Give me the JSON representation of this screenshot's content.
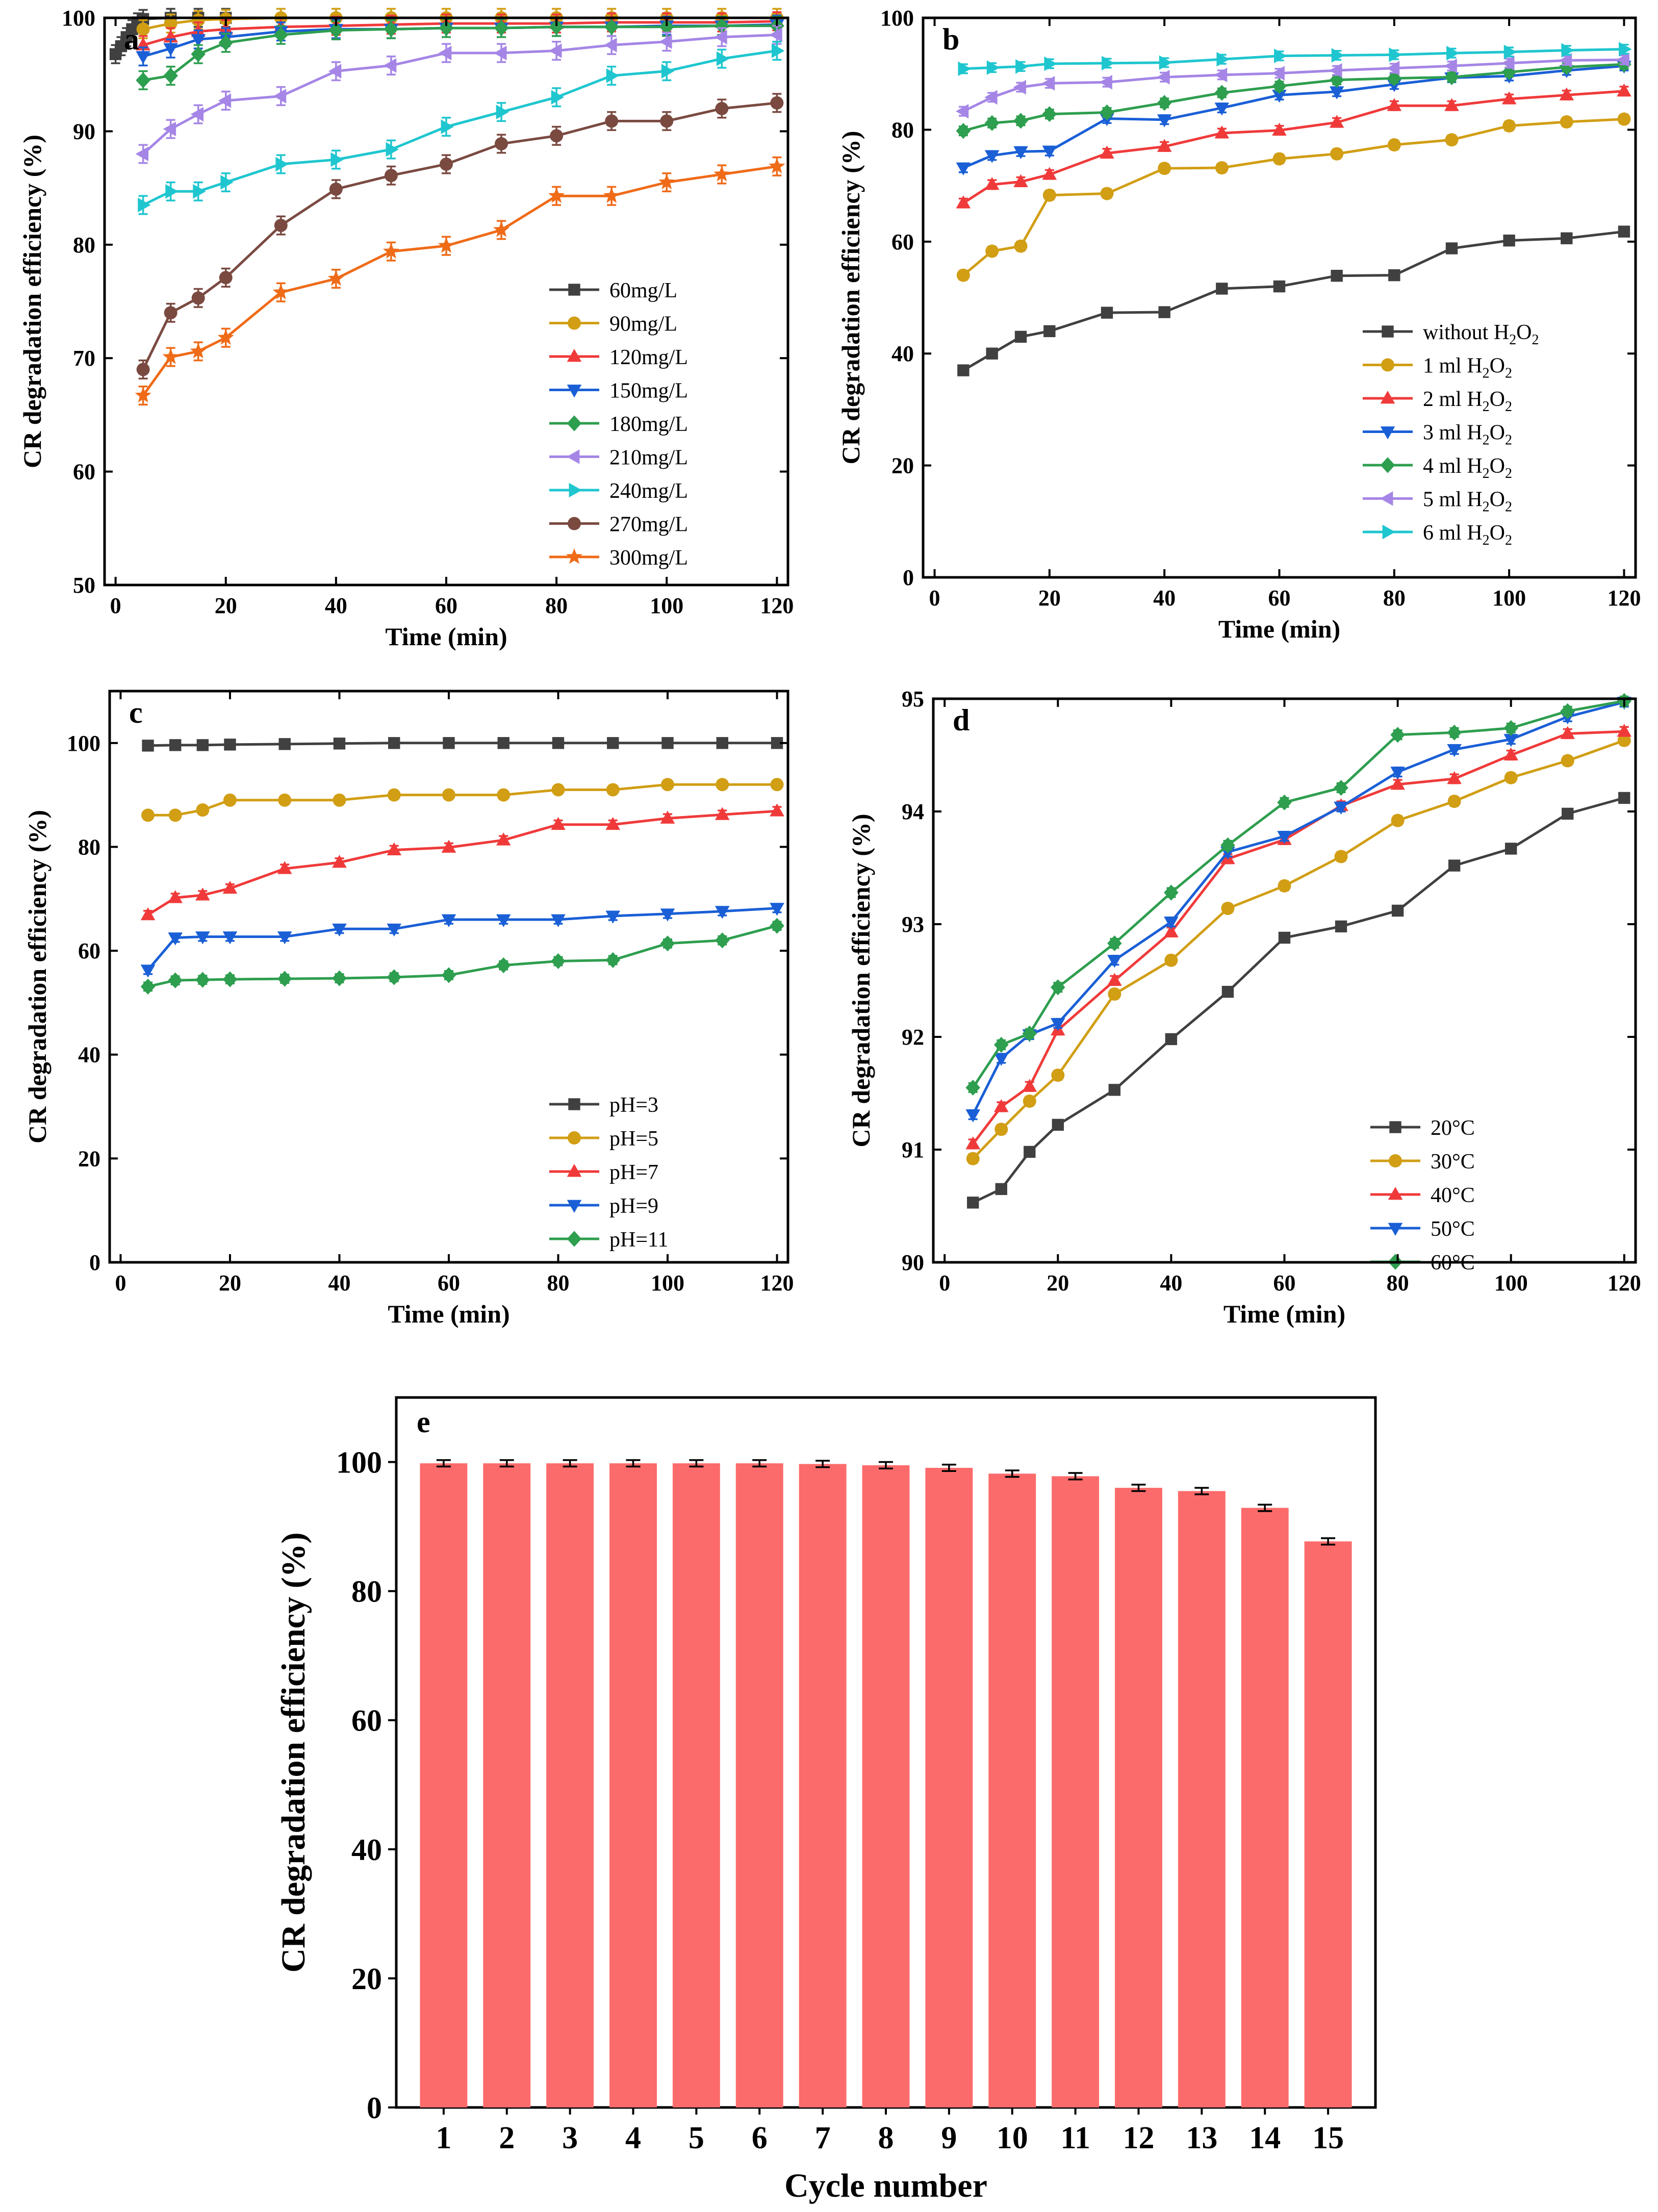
{
  "chart_data": [
    {
      "panel": "a",
      "type": "line",
      "xlabel": "Time (min)",
      "ylabel": "CR degradation efficiency (%)",
      "xlim": [
        0,
        120
      ],
      "ylim": [
        50,
        100
      ],
      "xticks": [
        0,
        20,
        40,
        60,
        80,
        100,
        120
      ],
      "yticks": [
        50,
        60,
        70,
        80,
        90,
        100
      ],
      "legend_position": "bottom-right",
      "x": [
        5,
        10,
        15,
        20,
        30,
        40,
        50,
        60,
        70,
        80,
        90,
        100,
        110,
        120
      ],
      "series": [
        {
          "name": "60mg/L",
          "color": "#404040",
          "marker": "square",
          "x": [
            0,
            1,
            2,
            3,
            4,
            5,
            10,
            15,
            20
          ],
          "values": [
            96.8,
            97.5,
            98.3,
            99,
            99.6,
            99.9,
            100,
            100,
            100
          ]
        },
        {
          "name": "90mg/L",
          "color": "#d19e14",
          "marker": "circle",
          "values": [
            99,
            99.5,
            99.8,
            99.9,
            100,
            100,
            100,
            100,
            100,
            100,
            100,
            100,
            100,
            100
          ]
        },
        {
          "name": "120mg/L",
          "color": "#f03a3a",
          "marker": "triangle-up",
          "values": [
            97.6,
            98.3,
            98.8,
            99,
            99.2,
            99.3,
            99.4,
            99.5,
            99.5,
            99.5,
            99.6,
            99.6,
            99.6,
            99.7
          ]
        },
        {
          "name": "150mg/L",
          "color": "#1a5fd6",
          "marker": "triangle-down",
          "values": [
            96.6,
            97.3,
            98.1,
            98.3,
            98.8,
            99,
            99,
            99.1,
            99.1,
            99.2,
            99.2,
            99.3,
            99.3,
            99.4
          ]
        },
        {
          "name": "180mg/L",
          "color": "#2e9e4f",
          "marker": "diamond",
          "values": [
            94.5,
            94.9,
            96.8,
            97.8,
            98.5,
            98.9,
            99,
            99.1,
            99.1,
            99.2,
            99.2,
            99.2,
            99.3,
            99.3
          ]
        },
        {
          "name": "210mg/L",
          "color": "#a586e6",
          "marker": "triangle-left",
          "values": [
            88,
            90.2,
            91.5,
            92.7,
            93.1,
            95.3,
            95.8,
            96.9,
            96.9,
            97.1,
            97.6,
            97.9,
            98.3,
            98.5
          ]
        },
        {
          "name": "240mg/L",
          "color": "#1fc6cf",
          "marker": "triangle-right",
          "values": [
            83.5,
            84.7,
            84.7,
            85.5,
            87.1,
            87.5,
            88.4,
            90.4,
            91.7,
            93,
            94.9,
            95.3,
            96.4,
            97.1
          ]
        },
        {
          "name": "270mg/L",
          "color": "#7a4a41",
          "marker": "circle",
          "values": [
            69,
            74,
            75.3,
            77.1,
            81.7,
            84.9,
            86.1,
            87.1,
            88.9,
            89.6,
            90.9,
            90.9,
            92,
            92.5
          ]
        },
        {
          "name": "300mg/L",
          "color": "#ef6b18",
          "marker": "star",
          "values": [
            66.7,
            70.1,
            70.6,
            71.8,
            75.8,
            77,
            79.4,
            79.9,
            81.3,
            84.3,
            84.3,
            85.5,
            86.2,
            86.9
          ]
        }
      ]
    },
    {
      "panel": "b",
      "type": "line",
      "xlabel": "Time (min)",
      "ylabel": "CR degradation efficiency (%)",
      "xlim": [
        0,
        120
      ],
      "ylim": [
        0,
        100
      ],
      "xticks": [
        0,
        20,
        40,
        60,
        80,
        100,
        120
      ],
      "yticks": [
        0,
        20,
        40,
        60,
        80,
        100
      ],
      "legend_position": "bottom-right",
      "x": [
        5,
        10,
        15,
        20,
        30,
        40,
        50,
        60,
        70,
        80,
        90,
        100,
        110,
        120
      ],
      "series": [
        {
          "name": "without H2O2",
          "label_main": "without H",
          "label_tail": "O",
          "color": "#404040",
          "marker": "square",
          "values": [
            37,
            40,
            43,
            44,
            47.3,
            47.4,
            51.6,
            52,
            53.9,
            54,
            58.8,
            60.2,
            60.6,
            61.8
          ]
        },
        {
          "name": "1 ml H2O2",
          "label_main": "1 ml H",
          "label_tail": "O",
          "color": "#d19e14",
          "marker": "circle",
          "values": [
            54,
            58.3,
            59.2,
            68.3,
            68.6,
            73.1,
            73.2,
            74.8,
            75.7,
            77.3,
            78.2,
            80.7,
            81.4,
            81.9
          ]
        },
        {
          "name": "2 ml H2O2",
          "label_main": "2 ml H",
          "label_tail": "O",
          "color": "#f03a3a",
          "marker": "triangle-up",
          "values": [
            66.9,
            70.2,
            70.7,
            72,
            75.8,
            77,
            79.4,
            79.9,
            81.3,
            84.3,
            84.3,
            85.5,
            86.2,
            86.9
          ]
        },
        {
          "name": "3 ml H2O2",
          "label_main": "3 ml H",
          "label_tail": "O",
          "color": "#1a5fd6",
          "marker": "triangle-down",
          "values": [
            73.2,
            75.4,
            76.1,
            76.2,
            82,
            81.8,
            83.9,
            86.2,
            86.8,
            88.1,
            89.3,
            89.6,
            90.6,
            91.4
          ]
        },
        {
          "name": "4 ml H2O2",
          "label_main": "4 ml H",
          "label_tail": "O",
          "color": "#2e9e4f",
          "marker": "diamond",
          "values": [
            79.8,
            81.2,
            81.6,
            82.8,
            83.1,
            84.8,
            86.6,
            87.8,
            88.9,
            89.2,
            89.4,
            90.3,
            91.2,
            91.7
          ]
        },
        {
          "name": "5 ml H2O2",
          "label_main": "5 ml H",
          "label_tail": "O",
          "color": "#a586e6",
          "marker": "triangle-left",
          "values": [
            83.3,
            85.8,
            87.6,
            88.3,
            88.5,
            89.4,
            89.8,
            90.1,
            90.6,
            91,
            91.4,
            91.9,
            92.4,
            92.5
          ]
        },
        {
          "name": "6 ml H2O2",
          "label_main": "6 ml H",
          "label_tail": "O",
          "color": "#1fc6cf",
          "marker": "triangle-right",
          "values": [
            90.9,
            91.1,
            91.3,
            91.8,
            91.9,
            92,
            92.6,
            93.2,
            93.3,
            93.4,
            93.7,
            93.9,
            94.2,
            94.4
          ]
        }
      ]
    },
    {
      "panel": "c",
      "type": "line",
      "xlabel": "Time (min)",
      "ylabel": "CR degradation efficiency (%)",
      "xlim": [
        0,
        120
      ],
      "ylim": [
        0,
        110
      ],
      "xticks": [
        0,
        20,
        40,
        60,
        80,
        100,
        120
      ],
      "yticks": [
        0,
        20,
        40,
        60,
        80,
        100
      ],
      "legend_position": "bottom-right",
      "x": [
        5,
        10,
        15,
        20,
        30,
        40,
        50,
        60,
        70,
        80,
        90,
        100,
        110,
        120
      ],
      "series": [
        {
          "name": "pH=3",
          "color": "#404040",
          "marker": "square",
          "values": [
            99.5,
            99.6,
            99.6,
            99.7,
            99.8,
            99.9,
            100,
            100,
            100,
            100,
            100,
            100,
            100,
            100
          ]
        },
        {
          "name": "pH=5",
          "color": "#d19e14",
          "marker": "circle",
          "values": [
            86.1,
            86.1,
            87.1,
            89,
            89,
            89,
            90,
            90,
            90,
            91,
            91,
            92,
            92,
            92
          ]
        },
        {
          "name": "pH=7",
          "color": "#f03a3a",
          "marker": "triangle-up",
          "values": [
            66.9,
            70.2,
            70.7,
            72,
            75.8,
            77,
            79.4,
            79.9,
            81.3,
            84.3,
            84.3,
            85.5,
            86.2,
            86.9
          ]
        },
        {
          "name": "pH=9",
          "color": "#1a5fd6",
          "marker": "triangle-down",
          "values": [
            56.3,
            62.5,
            62.7,
            62.7,
            62.7,
            64.2,
            64.2,
            66,
            66,
            66,
            66.7,
            67.1,
            67.6,
            68.2
          ]
        },
        {
          "name": "pH=11",
          "color": "#2e9e4f",
          "marker": "diamond",
          "values": [
            53.1,
            54.3,
            54.4,
            54.5,
            54.6,
            54.7,
            54.9,
            55.3,
            57.2,
            58,
            58.2,
            61.4,
            62,
            64.8
          ]
        }
      ]
    },
    {
      "panel": "d",
      "type": "line",
      "xlabel": "Time (min)",
      "ylabel": "CR degradation efficiency (%)",
      "xlim": [
        0,
        120
      ],
      "ylim": [
        90,
        95
      ],
      "xticks": [
        0,
        20,
        40,
        60,
        80,
        100,
        120
      ],
      "yticks": [
        90,
        91,
        92,
        93,
        94,
        95
      ],
      "legend_position": "bottom-right",
      "x": [
        5,
        10,
        15,
        20,
        30,
        40,
        50,
        60,
        70,
        80,
        90,
        100,
        110,
        120
      ],
      "series": [
        {
          "name": "20°C",
          "color": "#404040",
          "marker": "square",
          "values": [
            90.53,
            90.65,
            90.98,
            91.22,
            91.53,
            91.98,
            92.4,
            92.88,
            92.98,
            93.12,
            93.52,
            93.67,
            93.98,
            94.12
          ]
        },
        {
          "name": "30°C",
          "color": "#d19e14",
          "marker": "circle",
          "values": [
            90.92,
            91.18,
            91.43,
            91.66,
            92.38,
            92.68,
            93.14,
            93.34,
            93.6,
            93.92,
            94.09,
            94.3,
            94.45,
            94.63
          ]
        },
        {
          "name": "40°C",
          "color": "#f03a3a",
          "marker": "triangle-up",
          "values": [
            91.05,
            91.38,
            91.56,
            92.06,
            92.5,
            92.93,
            93.58,
            93.75,
            94.05,
            94.24,
            94.29,
            94.5,
            94.69,
            94.71
          ]
        },
        {
          "name": "50°C",
          "color": "#1a5fd6",
          "marker": "triangle-down",
          "values": [
            91.31,
            91.81,
            92.02,
            92.12,
            92.68,
            93.02,
            93.64,
            93.78,
            94.04,
            94.35,
            94.55,
            94.64,
            94.84,
            94.97
          ]
        },
        {
          "name": "60°C",
          "color": "#2e9e4f",
          "marker": "diamond",
          "values": [
            91.55,
            91.93,
            92.03,
            92.44,
            92.83,
            93.28,
            93.7,
            94.08,
            94.21,
            94.68,
            94.7,
            94.74,
            94.89,
            94.98
          ]
        }
      ]
    },
    {
      "panel": "e",
      "type": "bar",
      "xlabel": "Cycle number",
      "ylabel": "CR degradation efficiency (%)",
      "ylim": [
        0,
        110
      ],
      "yticks": [
        0,
        20,
        40,
        60,
        80,
        100
      ],
      "color": "#fc6b6b",
      "categories": [
        "1",
        "2",
        "3",
        "4",
        "5",
        "6",
        "7",
        "8",
        "9",
        "10",
        "11",
        "12",
        "13",
        "14",
        "15"
      ],
      "values": [
        99.8,
        99.8,
        99.8,
        99.8,
        99.8,
        99.8,
        99.7,
        99.5,
        99.1,
        98.2,
        97.8,
        96,
        95.5,
        92.9,
        87.7
      ]
    }
  ]
}
